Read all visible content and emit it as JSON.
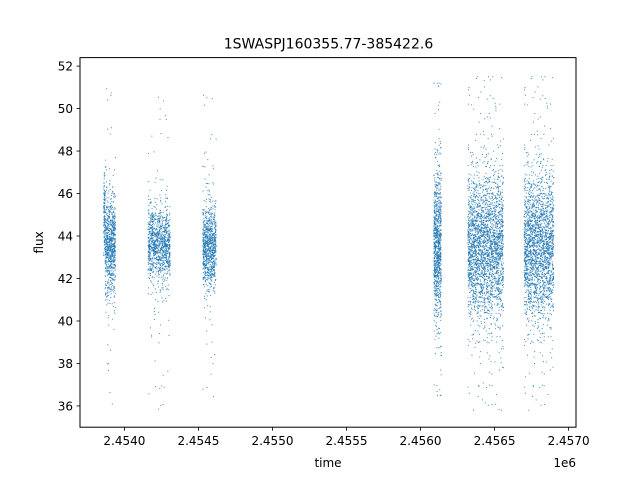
{
  "chart_data": {
    "type": "scatter",
    "title": "1SWASPJ160355.77-385422.6",
    "xlabel": "time",
    "ylabel": "flux",
    "x_offset_label": "1e6",
    "xlim": [
      2453700,
      2457050
    ],
    "ylim": [
      35,
      52.4
    ],
    "x_ticks": [
      2.454,
      2.4545,
      2.455,
      2.4555,
      2.456,
      2.4565,
      2.457
    ],
    "x_tick_labels": [
      "2.4540",
      "2.4545",
      "2.4550",
      "2.4555",
      "2.4560",
      "2.4565",
      "2.4570"
    ],
    "y_ticks": [
      36,
      38,
      40,
      42,
      44,
      46,
      48,
      50,
      52
    ],
    "y_tick_labels": [
      "36",
      "38",
      "40",
      "42",
      "44",
      "46",
      "48",
      "50",
      "52"
    ],
    "grid": false,
    "legend": "none",
    "marker_color": "#1f77b4",
    "series": [
      {
        "values": "dense observation clusters",
        "clusters": [
          {
            "x_start": 2453860,
            "x_end": 2453940,
            "y_center": 43.5,
            "y_spread": 1.1,
            "y_min": 35.9,
            "y_max": 51.4,
            "peak_start": 46.8,
            "count": 900
          },
          {
            "x_start": 2454160,
            "x_end": 2454310,
            "y_center": 43.6,
            "y_spread": 0.8,
            "y_min": 35.8,
            "y_max": 51.0,
            "count": 1100
          },
          {
            "x_start": 2454530,
            "x_end": 2454620,
            "y_center": 43.5,
            "y_spread": 0.9,
            "y_min": 35.7,
            "y_max": 51.5,
            "count": 900
          },
          {
            "x_start": 2456090,
            "x_end": 2456140,
            "y_center": 43.5,
            "y_spread": 1.7,
            "y_min": 36.5,
            "y_max": 51.2,
            "count": 900
          },
          {
            "x_start": 2456320,
            "x_end": 2456560,
            "y_center": 43.5,
            "y_spread": 1.6,
            "y_min": 35.8,
            "y_max": 51.5,
            "count": 2600
          },
          {
            "x_start": 2456700,
            "x_end": 2456900,
            "y_center": 43.5,
            "y_spread": 1.6,
            "y_min": 35.8,
            "y_max": 51.5,
            "count": 2200
          }
        ]
      }
    ]
  }
}
